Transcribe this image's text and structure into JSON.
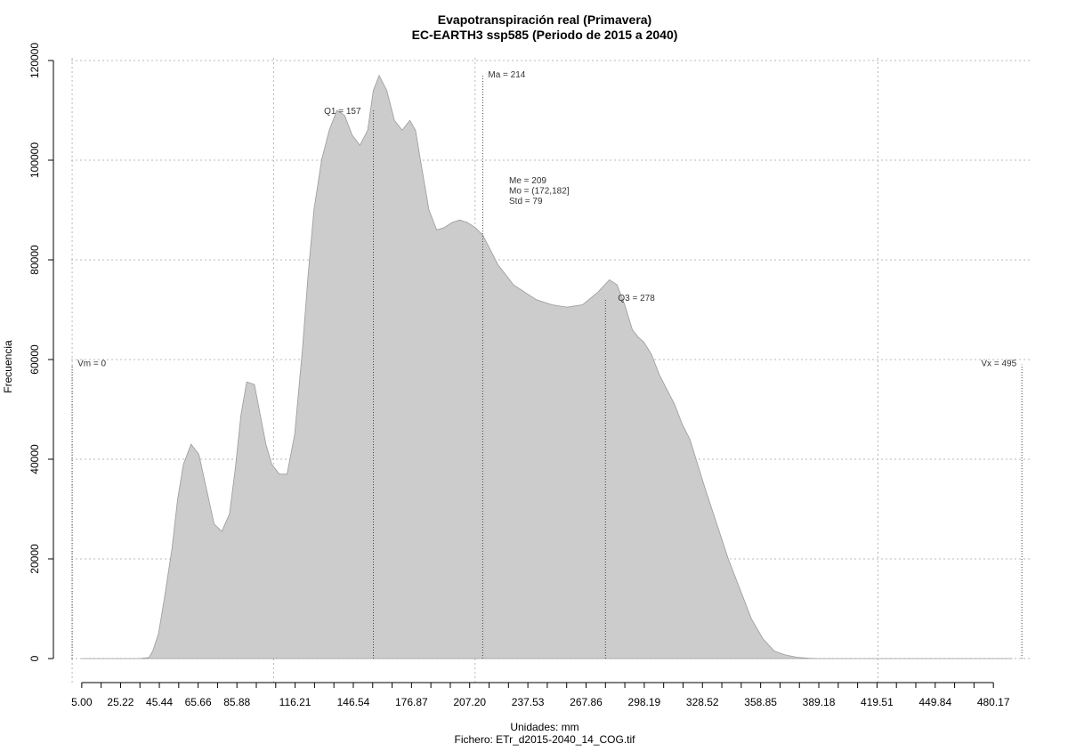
{
  "chart_data": {
    "type": "area",
    "title": "Evapotranspiración real (Primavera)",
    "subtitle": "EC-EARTH3 ssp585 (Periodo de 2015 a 2040)",
    "xlabel": "Unidades: mm",
    "ylabel": "Frecuencia",
    "footer": "Fichero: ETr_d2015-2040_14_COG.tif",
    "xlim": [
      -0.5,
      500.5
    ],
    "ylim": [
      0,
      120000
    ],
    "grid": true,
    "fill_color": "#cccccc",
    "x_tick_labels": [
      "5.00",
      "25.22",
      "45.44",
      "65.66",
      "85.88",
      "116.21",
      "146.54",
      "176.87",
      "207.20",
      "237.53",
      "267.86",
      "298.19",
      "328.52",
      "358.85",
      "389.18",
      "419.51",
      "449.84",
      "480.17"
    ],
    "x_tick_values": [
      5,
      25.22,
      45.44,
      65.66,
      85.88,
      116.21,
      146.54,
      176.87,
      207.2,
      237.53,
      267.86,
      298.19,
      328.52,
      358.85,
      389.18,
      419.51,
      449.84,
      480.17
    ],
    "x_minor_ticks": [
      5,
      15.11,
      25.22,
      35.33,
      45.44,
      55.55,
      65.66,
      75.77,
      85.88,
      95.99,
      106.1,
      116.21,
      126.32,
      136.43,
      146.54,
      156.65,
      166.76,
      176.87,
      186.98,
      197.09,
      207.2,
      217.31,
      227.42,
      237.53,
      247.64,
      257.75,
      267.86,
      277.97,
      288.08,
      298.19,
      308.3,
      318.41,
      328.52,
      338.63,
      348.74,
      358.85,
      368.96,
      379.07,
      389.18,
      399.29,
      409.4,
      419.51,
      429.62,
      439.73,
      449.84,
      459.95,
      470.06,
      480.17,
      490.28,
      500.39
    ],
    "y_ticks": [
      0,
      20000,
      40000,
      60000,
      80000,
      100000,
      120000
    ],
    "y_tick_labels": [
      "0",
      "20000",
      "40000",
      "60000",
      "80000",
      "100000",
      "120000"
    ],
    "x_grid": [
      0,
      105,
      210,
      420,
      525,
      840,
      945
    ],
    "x": [
      5,
      35,
      40,
      42,
      45,
      48,
      52,
      55,
      58,
      62,
      66,
      70,
      74,
      78,
      82,
      85,
      88,
      91,
      95,
      98,
      101,
      104,
      108,
      112,
      116,
      120,
      123,
      126,
      130,
      134,
      138,
      142,
      146,
      150,
      154,
      157,
      160,
      164,
      168,
      172,
      176,
      179,
      182,
      186,
      190,
      194,
      198,
      202,
      206,
      210,
      214,
      218,
      222,
      226,
      230,
      236,
      242,
      250,
      258,
      266,
      274,
      280,
      284,
      288,
      292,
      295,
      298,
      302,
      306,
      310,
      314,
      318,
      322,
      326,
      330,
      336,
      342,
      348,
      354,
      360,
      366,
      372,
      378,
      384,
      389,
      394,
      400,
      410,
      420,
      440,
      460,
      480,
      490
    ],
    "y": [
      0,
      0,
      200,
      1500,
      5000,
      12000,
      22000,
      32000,
      39000,
      43000,
      41000,
      34000,
      27000,
      25500,
      29000,
      38000,
      49000,
      55500,
      55000,
      49000,
      43000,
      39000,
      37000,
      37000,
      45000,
      62000,
      77000,
      90000,
      100000,
      106000,
      110000,
      109000,
      105000,
      103000,
      106000,
      114000,
      117000,
      114000,
      108000,
      106000,
      108000,
      106000,
      99000,
      90000,
      86000,
      86500,
      87500,
      88000,
      87500,
      86500,
      85000,
      82000,
      79000,
      77000,
      75000,
      73500,
      72000,
      71000,
      70500,
      71000,
      73500,
      76000,
      75000,
      71000,
      66000,
      64500,
      63500,
      61000,
      57000,
      54000,
      51000,
      47000,
      44000,
      39000,
      34000,
      27000,
      20000,
      14000,
      8000,
      4000,
      1500,
      700,
      250,
      60,
      0,
      0,
      0,
      0,
      0,
      0,
      0,
      0,
      0
    ],
    "annotations": [
      {
        "label": "Vm = 0",
        "x": 0,
        "line_y": 59000
      },
      {
        "label": "Q1 = 157",
        "x": 157,
        "line_y": 110000
      },
      {
        "label": "Ma = 214",
        "x": 214,
        "line_y": 117000
      },
      {
        "label": "Q3 = 278",
        "x": 278,
        "line_y": 72000
      },
      {
        "label": "Vx = 495",
        "x": 495,
        "line_y": 59000
      }
    ],
    "stats": [
      "Me = 209",
      "Mo = (172,182]",
      "Std = 79"
    ]
  }
}
